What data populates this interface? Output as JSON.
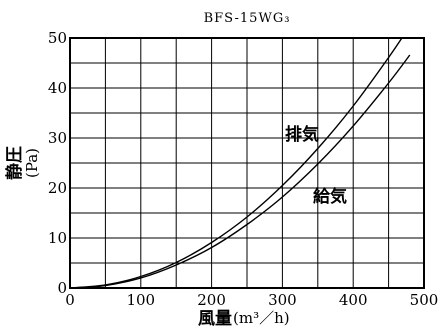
{
  "chart_data": {
    "type": "line",
    "title": "BFS-15WG₃",
    "xlabel": "風量",
    "xlabel_unit": "(m³／h)",
    "ylabel": "静圧",
    "ylabel_unit": "(Pa)",
    "xlim": [
      0,
      500
    ],
    "ylim": [
      0,
      50
    ],
    "xticks": [
      "0",
      "100",
      "200",
      "300",
      "400",
      "500"
    ],
    "yticks": [
      "0",
      "10",
      "20",
      "30",
      "40",
      "50"
    ],
    "grid": true,
    "x": [
      0,
      50,
      100,
      150,
      200,
      250,
      300,
      350,
      400,
      450,
      480
    ],
    "series": [
      {
        "name": "排気",
        "values": [
          0,
          0.6,
          2.3,
          5.1,
          9.1,
          14.2,
          20.5,
          27.9,
          36.4,
          46.1,
          52.4
        ]
      },
      {
        "name": "給気",
        "values": [
          0,
          0.5,
          2.0,
          4.6,
          8.1,
          12.7,
          18.2,
          24.8,
          32.4,
          41.0,
          46.6
        ]
      }
    ]
  }
}
